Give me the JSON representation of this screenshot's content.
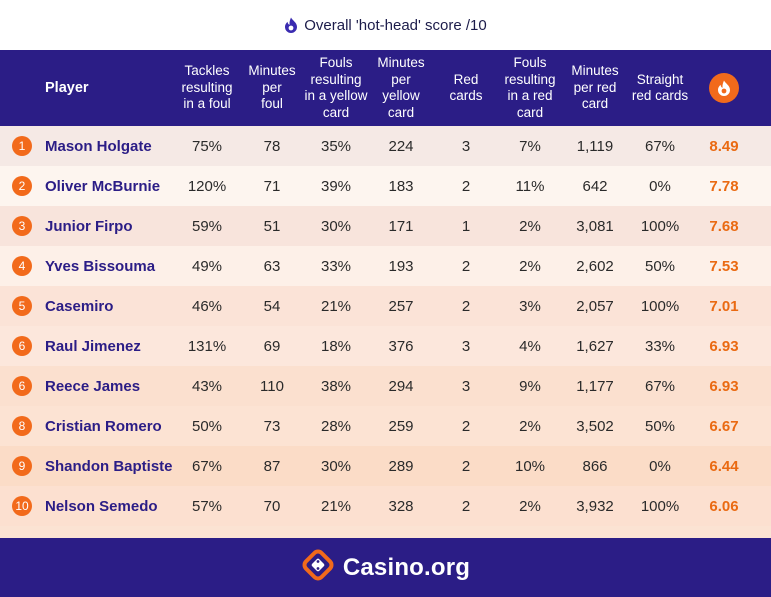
{
  "legend": {
    "icon": "flame-icon",
    "text": "Overall 'hot-head' score /10"
  },
  "header": {
    "player": "Player",
    "tackles": [
      "Tackles",
      "resulting",
      "in a foul"
    ],
    "min_per_foul": [
      "Minutes",
      "per",
      "foul"
    ],
    "fouls_yellow": [
      "Fouls",
      "resulting",
      "in a yellow",
      "card"
    ],
    "min_per_yellow": [
      "Minutes",
      "per",
      "yellow",
      "card"
    ],
    "red_cards": [
      "Red",
      "cards"
    ],
    "fouls_red": [
      "Fouls",
      "resulting",
      "in a red",
      "card"
    ],
    "min_per_red": [
      "Minutes",
      "per red",
      "card"
    ],
    "straight_red": [
      "Straight",
      "red cards"
    ],
    "score_icon": "flame-icon"
  },
  "rows": [
    {
      "rank": "1",
      "player": "Mason Holgate",
      "tackles": "75%",
      "min_per_foul": "78",
      "fouls_yellow": "35%",
      "min_per_yellow": "224",
      "red_cards": "3",
      "fouls_red": "7%",
      "min_per_red": "1,119",
      "straight_red": "67%",
      "score": "8.49"
    },
    {
      "rank": "2",
      "player": "Oliver McBurnie",
      "tackles": "120%",
      "min_per_foul": "71",
      "fouls_yellow": "39%",
      "min_per_yellow": "183",
      "red_cards": "2",
      "fouls_red": "11%",
      "min_per_red": "642",
      "straight_red": "0%",
      "score": "7.78"
    },
    {
      "rank": "3",
      "player": "Junior Firpo",
      "tackles": "59%",
      "min_per_foul": "51",
      "fouls_yellow": "30%",
      "min_per_yellow": "171",
      "red_cards": "1",
      "fouls_red": "2%",
      "min_per_red": "3,081",
      "straight_red": "100%",
      "score": "7.68"
    },
    {
      "rank": "4",
      "player": "Yves Bissouma",
      "tackles": "49%",
      "min_per_foul": "63",
      "fouls_yellow": "33%",
      "min_per_yellow": "193",
      "red_cards": "2",
      "fouls_red": "2%",
      "min_per_red": "2,602",
      "straight_red": "50%",
      "score": "7.53"
    },
    {
      "rank": "5",
      "player": "Casemiro",
      "tackles": "46%",
      "min_per_foul": "54",
      "fouls_yellow": "21%",
      "min_per_yellow": "257",
      "red_cards": "2",
      "fouls_red": "3%",
      "min_per_red": "2,057",
      "straight_red": "100%",
      "score": "7.01"
    },
    {
      "rank": "6",
      "player": "Raul Jimenez",
      "tackles": "131%",
      "min_per_foul": "69",
      "fouls_yellow": "18%",
      "min_per_yellow": "376",
      "red_cards": "3",
      "fouls_red": "4%",
      "min_per_red": "1,627",
      "straight_red": "33%",
      "score": "6.93"
    },
    {
      "rank": "6",
      "player": "Reece James",
      "tackles": "43%",
      "min_per_foul": "110",
      "fouls_yellow": "38%",
      "min_per_yellow": "294",
      "red_cards": "3",
      "fouls_red": "9%",
      "min_per_red": "1,177",
      "straight_red": "67%",
      "score": "6.93"
    },
    {
      "rank": "8",
      "player": "Cristian Romero",
      "tackles": "50%",
      "min_per_foul": "73",
      "fouls_yellow": "28%",
      "min_per_yellow": "259",
      "red_cards": "2",
      "fouls_red": "2%",
      "min_per_red": "3,502",
      "straight_red": "50%",
      "score": "6.67"
    },
    {
      "rank": "9",
      "player": "Shandon Baptiste",
      "tackles": "67%",
      "min_per_foul": "87",
      "fouls_yellow": "30%",
      "min_per_yellow": "289",
      "red_cards": "2",
      "fouls_red": "10%",
      "min_per_red": "866",
      "straight_red": "0%",
      "score": "6.44"
    },
    {
      "rank": "10",
      "player": "Nelson Semedo",
      "tackles": "57%",
      "min_per_foul": "70",
      "fouls_yellow": "21%",
      "min_per_yellow": "328",
      "red_cards": "2",
      "fouls_red": "2%",
      "min_per_red": "3,932",
      "straight_red": "100%",
      "score": "6.06"
    }
  ],
  "row_colors": [
    "#f5e9e5",
    "#fdf5ef",
    "#f8e4dc",
    "#fdf0e8",
    "#fbe3d7",
    "#fce7dc",
    "#fbe0cf",
    "#fce3d3",
    "#fbdcc7",
    "#fce0d0"
  ],
  "colors": {
    "header_bg": "#2b1d86",
    "accent": "#f26a1b",
    "score_text": "#ea6a12",
    "name_text": "#2b1d86"
  },
  "footer": {
    "logo_icon": "casino-dice-logo-icon",
    "brand": "Casino.org"
  },
  "chart_data": {
    "type": "table",
    "title": "Overall 'hot-head' score /10",
    "columns": [
      "Player",
      "Tackles resulting in a foul",
      "Minutes per foul",
      "Fouls resulting in a yellow card",
      "Minutes per yellow card",
      "Red cards",
      "Fouls resulting in a red card",
      "Minutes per red card",
      "Straight red cards",
      "Overall 'hot-head' score /10"
    ],
    "rows": [
      [
        "Mason Holgate",
        "75%",
        78,
        "35%",
        224,
        3,
        "7%",
        1119,
        "67%",
        8.49
      ],
      [
        "Oliver McBurnie",
        "120%",
        71,
        "39%",
        183,
        2,
        "11%",
        642,
        "0%",
        7.78
      ],
      [
        "Junior Firpo",
        "59%",
        51,
        "30%",
        171,
        1,
        "2%",
        3081,
        "100%",
        7.68
      ],
      [
        "Yves Bissouma",
        "49%",
        63,
        "33%",
        193,
        2,
        "2%",
        2602,
        "50%",
        7.53
      ],
      [
        "Casemiro",
        "46%",
        54,
        "21%",
        257,
        2,
        "3%",
        2057,
        "100%",
        7.01
      ],
      [
        "Raul Jimenez",
        "131%",
        69,
        "18%",
        376,
        3,
        "4%",
        1627,
        "33%",
        6.93
      ],
      [
        "Reece James",
        "43%",
        110,
        "38%",
        294,
        3,
        "9%",
        1177,
        "67%",
        6.93
      ],
      [
        "Cristian Romero",
        "50%",
        73,
        "28%",
        259,
        2,
        "2%",
        3502,
        "50%",
        6.67
      ],
      [
        "Shandon Baptiste",
        "67%",
        87,
        "30%",
        289,
        2,
        "10%",
        866,
        "0%",
        6.44
      ],
      [
        "Nelson Semedo",
        "57%",
        70,
        "21%",
        328,
        2,
        "2%",
        3932,
        "100%",
        6.06
      ]
    ]
  }
}
